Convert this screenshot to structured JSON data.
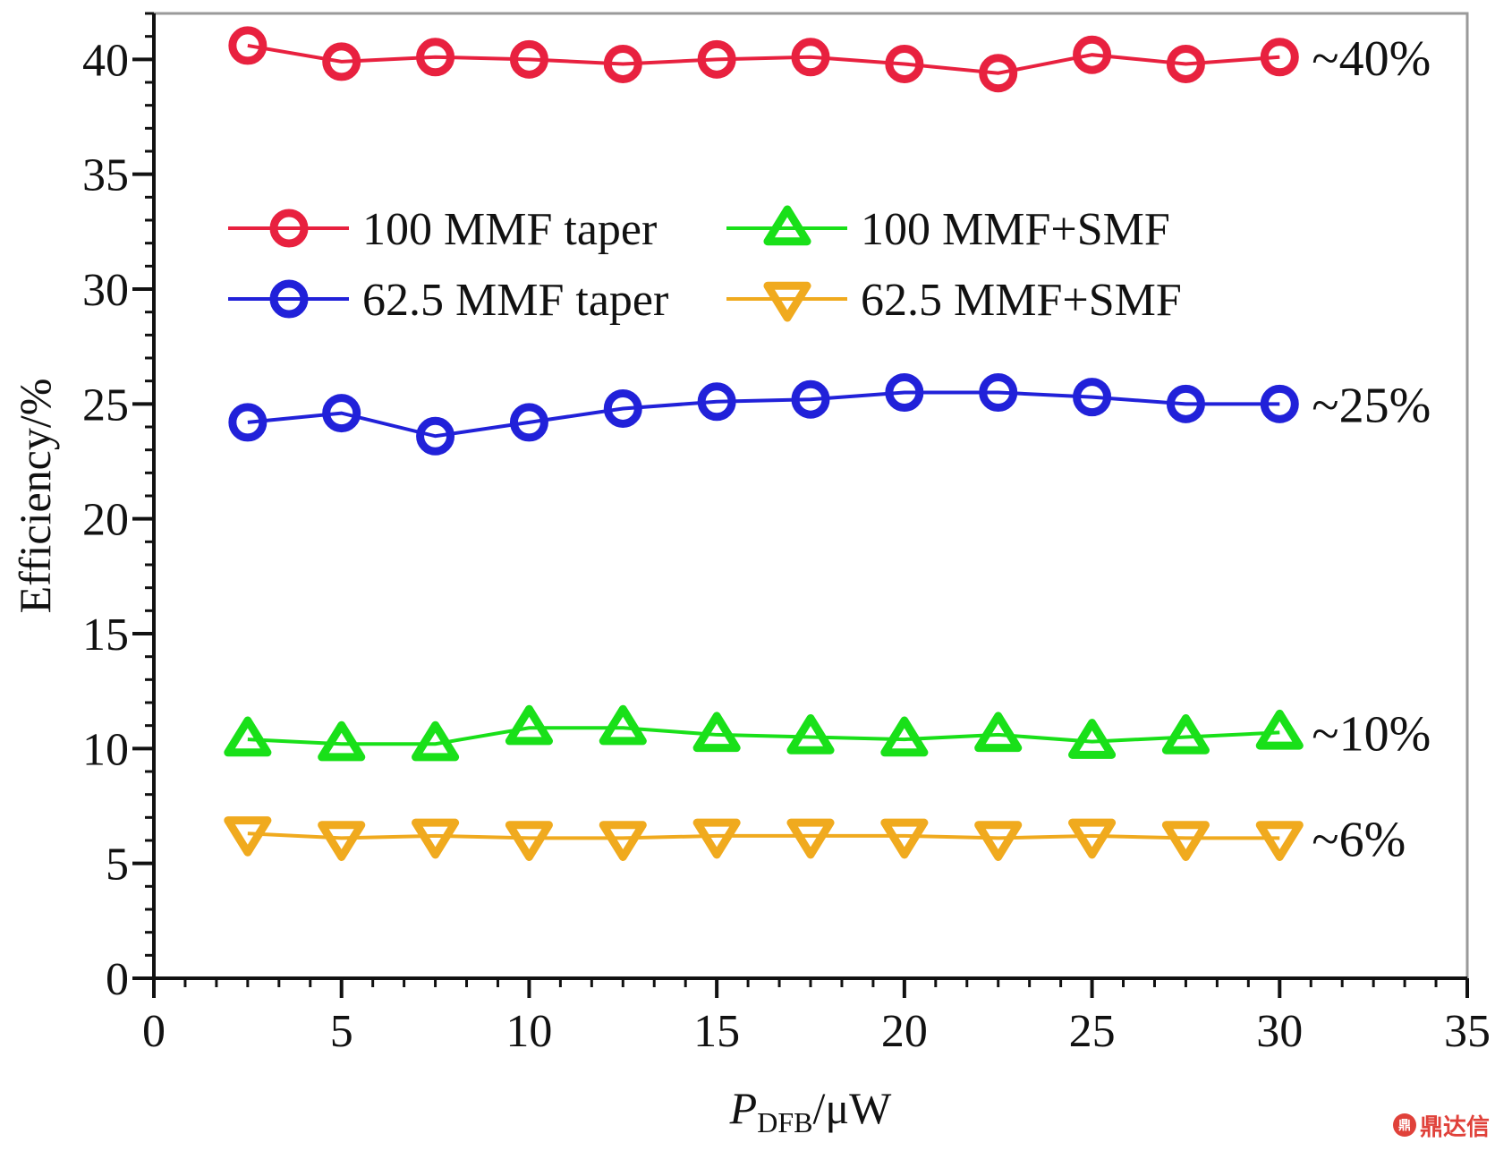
{
  "chart_data": {
    "type": "line",
    "xlabel_main": "P",
    "xlabel_sub": "DFB",
    "xlabel_unit": "/μW",
    "ylabel": "Efficiency/%",
    "xlim": [
      0,
      35
    ],
    "ylim": [
      0,
      42
    ],
    "xticks": [
      0,
      5,
      10,
      15,
      20,
      25,
      30,
      35
    ],
    "yticks": [
      0,
      5,
      10,
      15,
      20,
      25,
      30,
      35,
      40
    ],
    "grid": false,
    "legend_placement": "upper-center",
    "x": [
      2.5,
      5,
      7.5,
      10,
      12.5,
      15,
      17.5,
      20,
      22.5,
      25,
      27.5,
      30
    ],
    "series": [
      {
        "name": "100 MMF taper",
        "color": "#e8213f",
        "marker": "circle",
        "values": [
          40.6,
          39.9,
          40.1,
          40.0,
          39.8,
          40.0,
          40.1,
          39.8,
          39.4,
          40.2,
          39.8,
          40.1
        ]
      },
      {
        "name": "62.5 MMF taper",
        "color": "#2121d9",
        "marker": "circle",
        "values": [
          24.2,
          24.6,
          23.6,
          24.2,
          24.8,
          25.1,
          25.2,
          25.5,
          25.5,
          25.3,
          25.0,
          25.0
        ]
      },
      {
        "name": "100 MMF+SMF",
        "color": "#19e019",
        "marker": "triangle-up",
        "values": [
          10.4,
          10.2,
          10.2,
          10.9,
          10.9,
          10.6,
          10.5,
          10.4,
          10.6,
          10.3,
          10.5,
          10.7
        ]
      },
      {
        "name": "62.5 MMF+SMF",
        "color": "#f0aa1e",
        "marker": "triangle-down",
        "values": [
          6.3,
          6.1,
          6.2,
          6.1,
          6.1,
          6.2,
          6.2,
          6.2,
          6.1,
          6.2,
          6.1,
          6.1
        ]
      }
    ],
    "annotations": [
      {
        "text": "~40%",
        "series": 0
      },
      {
        "text": "~25%",
        "series": 1
      },
      {
        "text": "~10%",
        "series": 2
      },
      {
        "text": "~6%",
        "series": 3
      }
    ]
  },
  "watermark": {
    "icon": "鼎",
    "text": "鼎达信"
  }
}
